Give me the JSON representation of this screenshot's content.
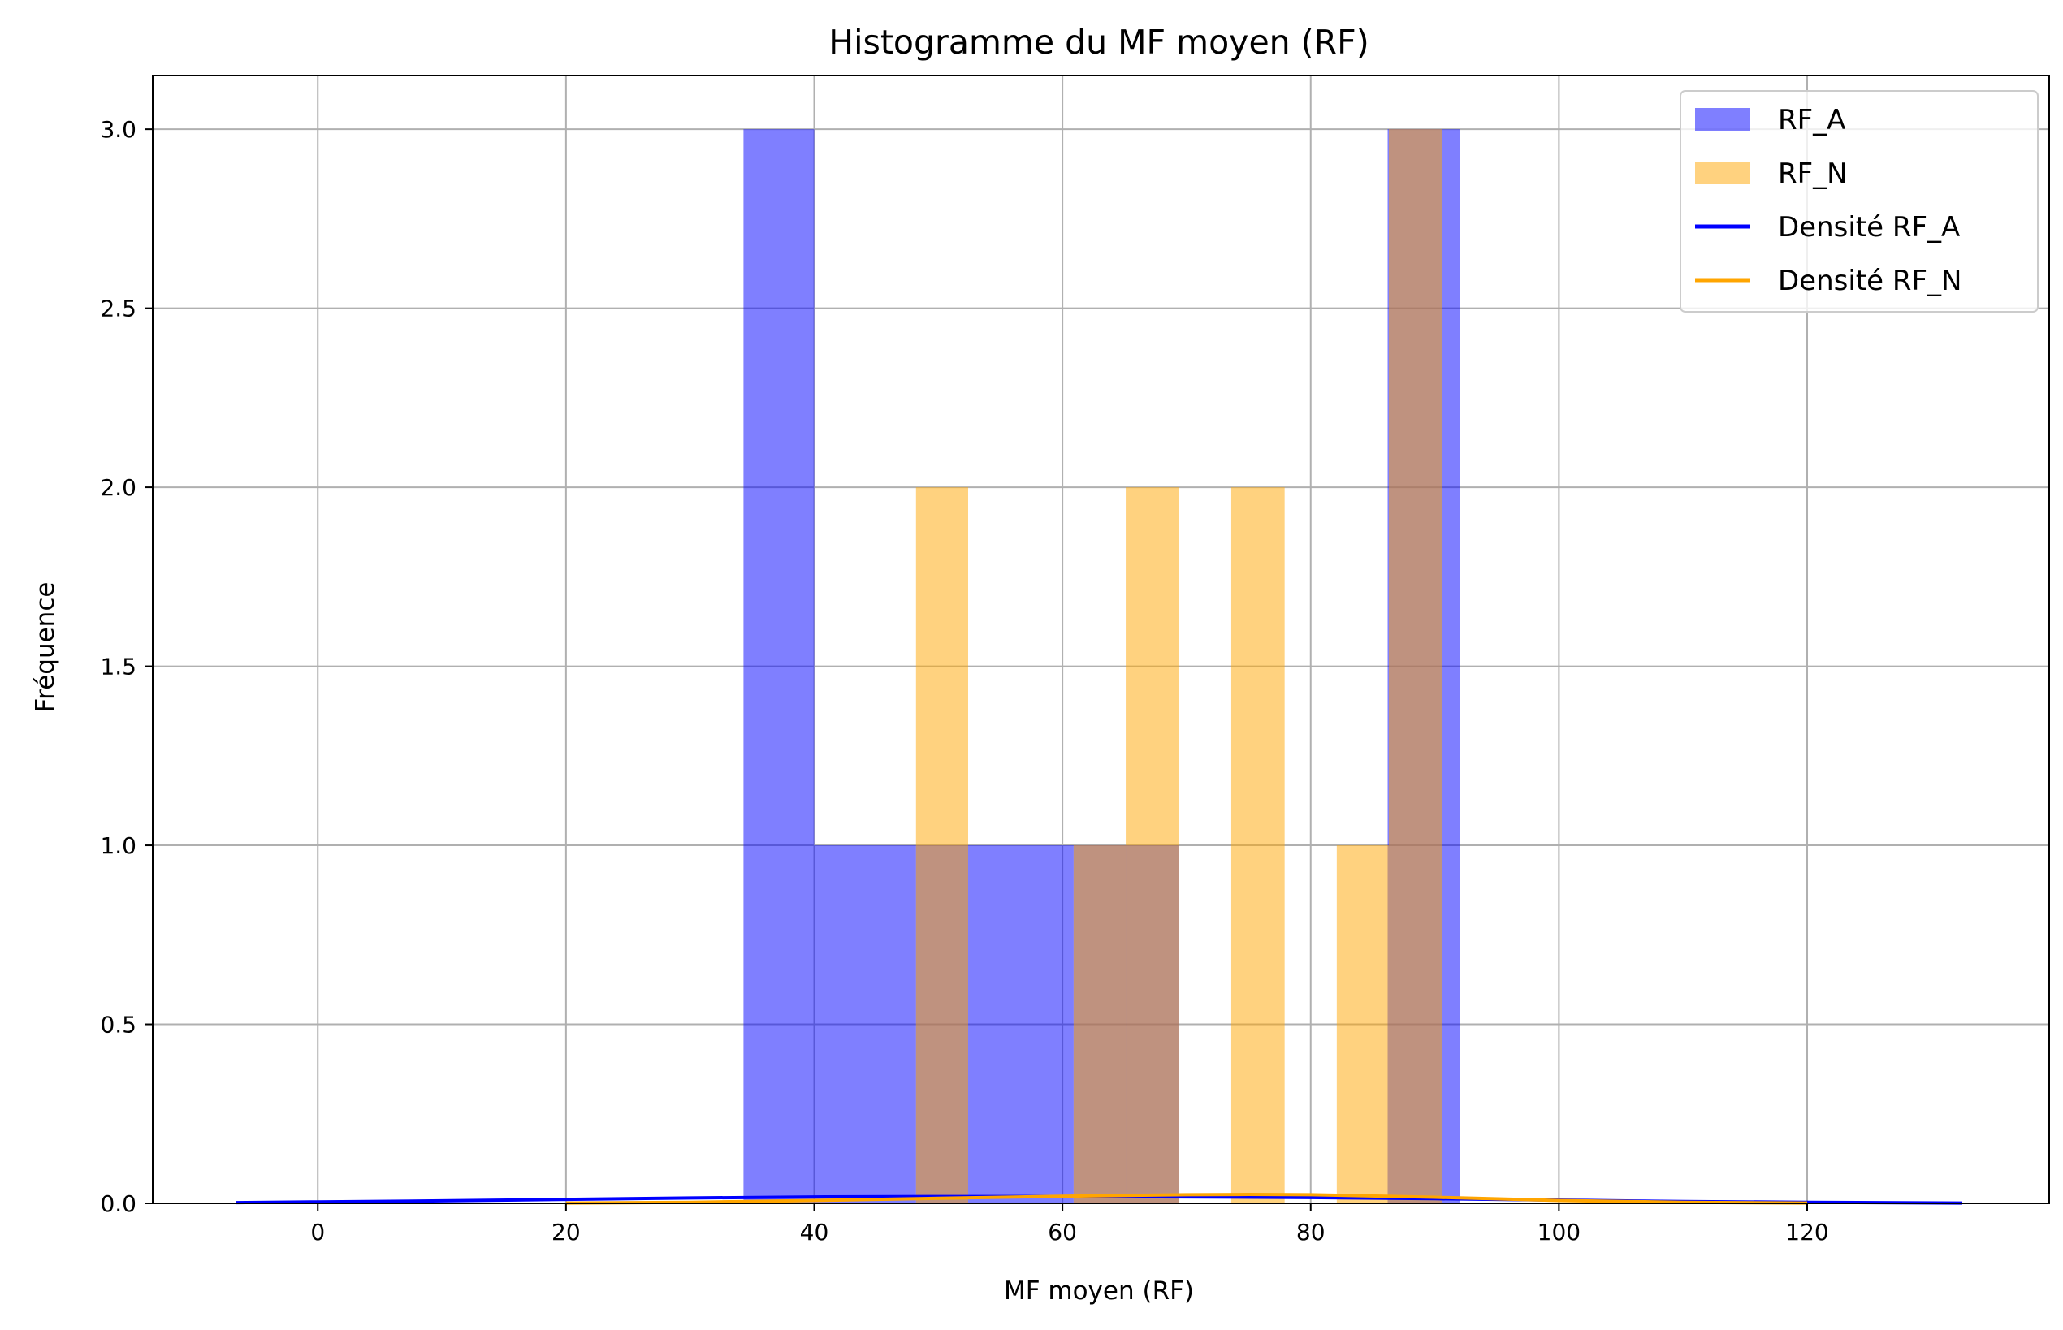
{
  "chart_data": {
    "type": "bar",
    "title": "Histogramme du MF moyen (RF)",
    "xlabel": "MF moyen (RF)",
    "ylabel": "Fréquence",
    "xlim": [
      -13.3,
      139.5
    ],
    "ylim": [
      0,
      3.15
    ],
    "xticks": [
      0,
      20,
      40,
      60,
      80,
      100,
      120
    ],
    "yticks": [
      0.0,
      0.5,
      1.0,
      1.5,
      2.0,
      2.5,
      3.0
    ],
    "grid": true,
    "legend_position": "top-right",
    "colors": {
      "RF_A": "#0000ff",
      "RF_N": "#ffa500",
      "bar_alpha": 0.5
    },
    "histograms": [
      {
        "name": "RF_A",
        "color": "#0000ff",
        "bins": [
          {
            "x0": 34.3,
            "x1": 40.0,
            "count": 3
          },
          {
            "x0": 40.0,
            "x1": 48.2,
            "count": 1
          },
          {
            "x0": 48.2,
            "x1": 52.4,
            "count": 1
          },
          {
            "x0": 52.4,
            "x1": 60.9,
            "count": 1
          },
          {
            "x0": 60.9,
            "x1": 69.4,
            "count": 1
          },
          {
            "x0": 86.2,
            "x1": 92.0,
            "count": 3
          }
        ]
      },
      {
        "name": "RF_N",
        "color": "#ffa500",
        "bins": [
          {
            "x0": 48.2,
            "x1": 52.4,
            "count": 2
          },
          {
            "x0": 60.9,
            "x1": 65.1,
            "count": 1
          },
          {
            "x0": 65.1,
            "x1": 69.4,
            "count": 2
          },
          {
            "x0": 73.6,
            "x1": 77.9,
            "count": 2
          },
          {
            "x0": 82.1,
            "x1": 86.3,
            "count": 1
          },
          {
            "x0": 86.3,
            "x1": 90.6,
            "count": 3
          }
        ]
      }
    ],
    "densities": [
      {
        "name": "Densité RF_A",
        "color": "#0000ff",
        "x": [
          -6.6,
          0,
          10,
          20,
          30,
          40,
          50,
          60,
          70,
          80,
          90,
          100,
          110,
          120,
          132.5
        ],
        "y": [
          0.002,
          0.004,
          0.007,
          0.011,
          0.015,
          0.018,
          0.019,
          0.019,
          0.018,
          0.016,
          0.013,
          0.009,
          0.005,
          0.003,
          0.001
        ]
      },
      {
        "name": "Densité RF_N",
        "color": "#ffa500",
        "x": [
          20,
          30,
          40,
          50,
          60,
          70,
          75,
          80,
          90,
          100,
          110,
          120
        ],
        "y": [
          0.001,
          0.003,
          0.008,
          0.014,
          0.02,
          0.024,
          0.025,
          0.024,
          0.017,
          0.008,
          0.003,
          0.001
        ]
      }
    ],
    "legend": [
      {
        "label": "RF_A",
        "kind": "patch",
        "color": "#0000ff"
      },
      {
        "label": "RF_N",
        "kind": "patch",
        "color": "#ffa500"
      },
      {
        "label": "Densité RF_A",
        "kind": "line",
        "color": "#0000ff"
      },
      {
        "label": "Densité RF_N",
        "kind": "line",
        "color": "#ffa500"
      }
    ]
  }
}
